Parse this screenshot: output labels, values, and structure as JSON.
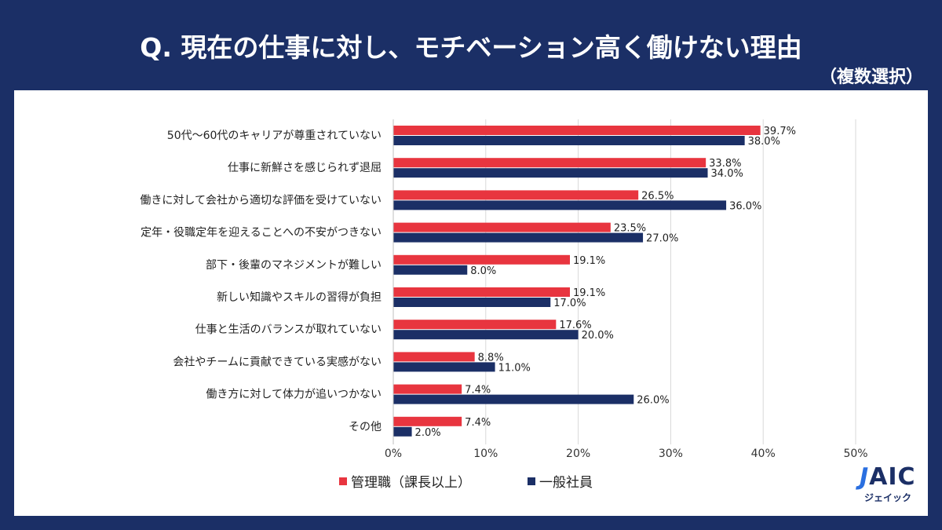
{
  "chart_data": {
    "type": "bar",
    "orientation": "horizontal",
    "title": "Q. 現在の仕事に対し、モチベーション高く働けない理由",
    "subtitle": "（複数選択）",
    "categories": [
      "50代～60代のキャリアが尊重されていない",
      "仕事に新鮮さを感じられず退屈",
      "働きに対して会社から適切な評価を受けていない",
      "定年・役職定年を迎えることへの不安がつきない",
      "部下・後輩のマネジメントが難しい",
      "新しい知識やスキルの習得が負担",
      "仕事と生活のバランスが取れていない",
      "会社やチームに貢献できている実感がない",
      "働き方に対して体力が追いつかない",
      "その他"
    ],
    "series": [
      {
        "name": "管理職（課長以上）",
        "color": "#e8353f",
        "values": [
          39.7,
          33.8,
          26.5,
          23.5,
          19.1,
          19.1,
          17.6,
          8.8,
          7.4,
          7.4
        ]
      },
      {
        "name": "一般社員",
        "color": "#1b2f66",
        "values": [
          38.0,
          34.0,
          36.0,
          27.0,
          8.0,
          17.0,
          20.0,
          11.0,
          26.0,
          2.0
        ]
      }
    ],
    "xlim": [
      0,
      50
    ],
    "xticks": [
      "0%",
      "10%",
      "20%",
      "30%",
      "40%",
      "50%"
    ],
    "grid": true,
    "legend_position": "bottom"
  },
  "logo": {
    "text": "JAIC",
    "subtext": "ジェイック"
  }
}
